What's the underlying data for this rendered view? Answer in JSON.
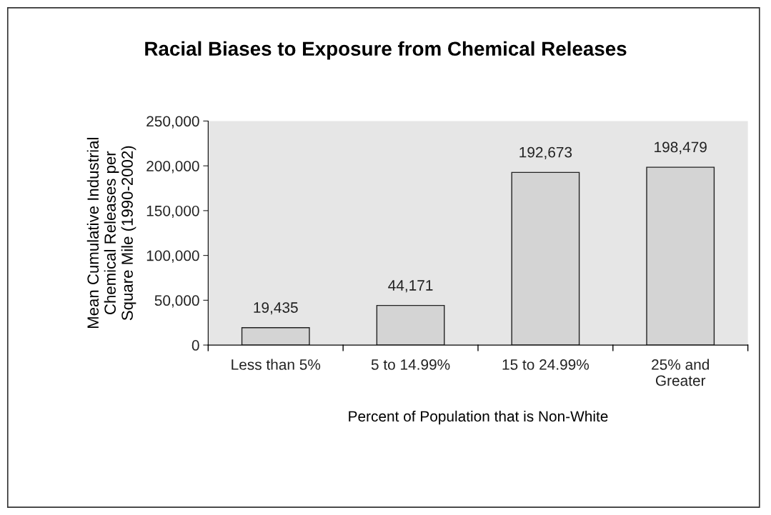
{
  "chart_data": {
    "type": "bar",
    "title": "Racial Biases to Exposure from Chemical Releases",
    "xlabel": "Percent of Population that is Non-White",
    "ylabel": "Mean Cumulative Industrial\nChemical Releases per\nSquare Mile (1990-2002)",
    "categories": [
      "Less than 5%",
      "5 to 14.99%",
      "15 to 24.99%",
      "25% and\nGreater"
    ],
    "values": [
      19435,
      44171,
      192673,
      198479
    ],
    "color": "#d4d4d4",
    "ylim": [
      0,
      250000
    ],
    "yticks": [
      {
        "value": 0,
        "label": "0"
      },
      {
        "value": 50000,
        "label": "50,000"
      },
      {
        "value": 100000,
        "label": "100,000"
      },
      {
        "value": 150000,
        "label": "150,000"
      },
      {
        "value": 200000,
        "label": "200,000"
      },
      {
        "value": 250000,
        "label": "250,000"
      }
    ],
    "value_labels": [
      "19,435",
      "44,171",
      "192,673",
      "198,479"
    ]
  }
}
